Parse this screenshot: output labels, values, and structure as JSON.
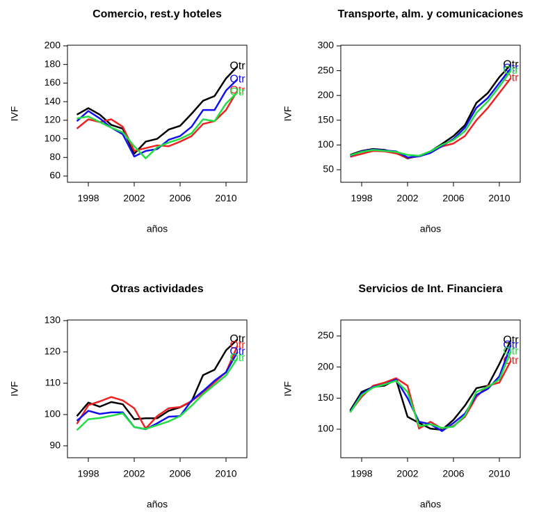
{
  "chart_data": [
    {
      "type": "line",
      "title": "Comercio, rest.y hoteles",
      "xlabel": "años",
      "ylabel": "IVF",
      "x": [
        1997,
        1998,
        1999,
        2000,
        2001,
        2002,
        2003,
        2004,
        2005,
        2006,
        2007,
        2008,
        2009,
        2010,
        2011
      ],
      "xlim": [
        1996.18,
        2011.82
      ],
      "ylim": [
        53.3,
        200.7
      ],
      "xticks": [
        1998,
        2002,
        2006,
        2010
      ],
      "yticks": [
        60,
        80,
        100,
        120,
        140,
        160,
        180,
        200
      ],
      "series": [
        {
          "name": "Otr",
          "color": "#000000",
          "values": [
            126,
            133,
            126,
            115,
            111,
            84,
            97,
            100,
            110,
            114,
            127,
            141,
            146,
            165,
            178
          ]
        },
        {
          "name": "Otr",
          "color": "#ee2222",
          "values": [
            111,
            121,
            118,
            121,
            113,
            87,
            90,
            93,
            92,
            97,
            103,
            116,
            119,
            131,
            152
          ]
        },
        {
          "name": "Otr",
          "color": "#1111ee",
          "values": [
            119,
            130,
            122,
            112,
            105,
            81,
            87,
            89,
            99,
            103,
            113,
            131,
            131,
            152,
            164
          ]
        },
        {
          "name": "Otr",
          "color": "#22dd44",
          "values": [
            122,
            124,
            118,
            112,
            107,
            92,
            79,
            91,
            96,
            100,
            106,
            121,
            119,
            138,
            150
          ]
        }
      ]
    },
    {
      "type": "line",
      "title": "Transporte, alm. y comunicaciones",
      "xlabel": "años",
      "ylabel": "IVF",
      "x": [
        1997,
        1998,
        1999,
        2000,
        2001,
        2002,
        2003,
        2004,
        2005,
        2006,
        2007,
        2008,
        2009,
        2010,
        2011
      ],
      "xlim": [
        1996.18,
        2011.82
      ],
      "ylim": [
        24.7,
        301.4
      ],
      "xticks": [
        1998,
        2002,
        2006,
        2010
      ],
      "yticks": [
        50,
        100,
        150,
        200,
        250,
        300
      ],
      "series": [
        {
          "name": "Otr",
          "color": "#000000",
          "values": [
            80,
            88,
            92,
            90,
            84,
            73,
            78,
            87,
            102,
            118,
            140,
            185,
            205,
            237,
            262
          ]
        },
        {
          "name": "Otr",
          "color": "#ee2222",
          "values": [
            76,
            82,
            88,
            87,
            83,
            74,
            77,
            85,
            97,
            103,
            118,
            150,
            175,
            205,
            235
          ]
        },
        {
          "name": "Otr",
          "color": "#1111ee",
          "values": [
            78,
            87,
            91,
            89,
            87,
            75,
            77,
            84,
            98,
            112,
            135,
            175,
            195,
            225,
            255
          ]
        },
        {
          "name": "Otr",
          "color": "#22dd44",
          "values": [
            79,
            86,
            90,
            88,
            86,
            80,
            78,
            87,
            100,
            110,
            128,
            165,
            188,
            218,
            250
          ]
        }
      ]
    },
    {
      "type": "line",
      "title": "Otras actividades",
      "xlabel": "años",
      "ylabel": "IVF",
      "x": [
        1997,
        1998,
        1999,
        2000,
        2001,
        2002,
        2003,
        2004,
        2005,
        2006,
        2007,
        2008,
        2009,
        2010,
        2011
      ],
      "xlim": [
        1996.18,
        2011.82
      ],
      "ylim": [
        86.2,
        130.2
      ],
      "xticks": [
        1998,
        2002,
        2006,
        2010
      ],
      "yticks": [
        90,
        100,
        110,
        120,
        130
      ],
      "series": [
        {
          "name": "Otr",
          "color": "#000000",
          "values": [
            99.5,
            103.8,
            102.5,
            104,
            103.3,
            98.5,
            98.8,
            98.8,
            101.2,
            102.3,
            104.2,
            112.6,
            114.3,
            120.5,
            124
          ]
        },
        {
          "name": "Otr",
          "color": "#ee2222",
          "values": [
            97,
            103,
            104.2,
            105.6,
            104.5,
            102,
            95.5,
            99.5,
            102,
            102.4,
            104.3,
            107,
            110.3,
            113.5,
            122
          ]
        },
        {
          "name": "Otr",
          "color": "#1111ee",
          "values": [
            98,
            101.2,
            100.2,
            100.7,
            100.7,
            96,
            95.3,
            97.2,
            99.3,
            99.5,
            104.5,
            107.5,
            110.8,
            113.5,
            120
          ]
        },
        {
          "name": "Otr",
          "color": "#22dd44",
          "values": [
            95,
            98.5,
            98.9,
            99.6,
            100.4,
            96,
            95.4,
            96.6,
            97.8,
            99.5,
            102.8,
            106.5,
            109.5,
            112.5,
            118
          ]
        }
      ]
    },
    {
      "type": "line",
      "title": "Servicios de Int. Financiera",
      "xlabel": "años",
      "ylabel": "IVF",
      "x": [
        1997,
        1998,
        1999,
        2000,
        2001,
        2002,
        2003,
        2004,
        2005,
        2006,
        2007,
        2008,
        2009,
        2010,
        2011
      ],
      "xlim": [
        1996.18,
        2011.82
      ],
      "ylim": [
        54.1,
        275.7
      ],
      "xticks": [
        1998,
        2002,
        2006,
        2010
      ],
      "yticks": [
        100,
        150,
        200,
        250
      ],
      "series": [
        {
          "name": "Otr",
          "color": "#000000",
          "values": [
            130,
            160,
            168,
            170,
            180,
            120,
            110,
            101,
            99,
            115,
            138,
            166,
            170,
            205,
            243
          ]
        },
        {
          "name": "Otr",
          "color": "#ee2222",
          "values": [
            128,
            152,
            170,
            175,
            182,
            170,
            101,
            112,
            101,
            105,
            120,
            152,
            170,
            175,
            210
          ]
        },
        {
          "name": "Otr",
          "color": "#1111ee",
          "values": [
            128,
            157,
            168,
            172,
            180,
            150,
            112,
            108,
            97,
            110,
            125,
            155,
            165,
            185,
            235
          ]
        },
        {
          "name": "Otr",
          "color": "#22dd44",
          "values": [
            127,
            155,
            167,
            172,
            178,
            160,
            105,
            108,
            102,
            104,
            122,
            160,
            168,
            180,
            225
          ]
        }
      ]
    }
  ]
}
